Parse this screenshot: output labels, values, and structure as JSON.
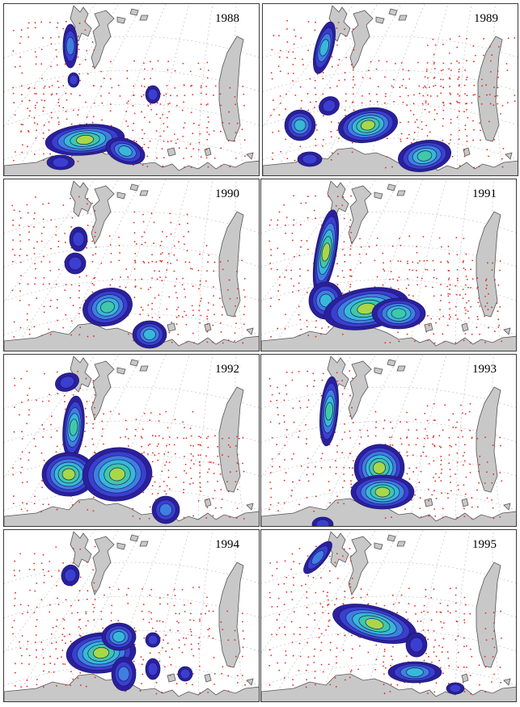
{
  "panels": [
    {
      "year": "1988"
    },
    {
      "year": "1989"
    },
    {
      "year": "1990"
    },
    {
      "year": "1991"
    },
    {
      "year": "1992"
    },
    {
      "year": "1993"
    },
    {
      "year": "1994"
    },
    {
      "year": "1995"
    }
  ],
  "colors": {
    "land": "#c8c8c8",
    "coast": "#555555",
    "station": "#e8261c",
    "graticule": "#b9b9b9",
    "contour_levels": [
      "#2b1f9e",
      "#3b3fd0",
      "#3f7fe0",
      "#38b8d8",
      "#3fc9a8",
      "#a8d848"
    ]
  }
}
